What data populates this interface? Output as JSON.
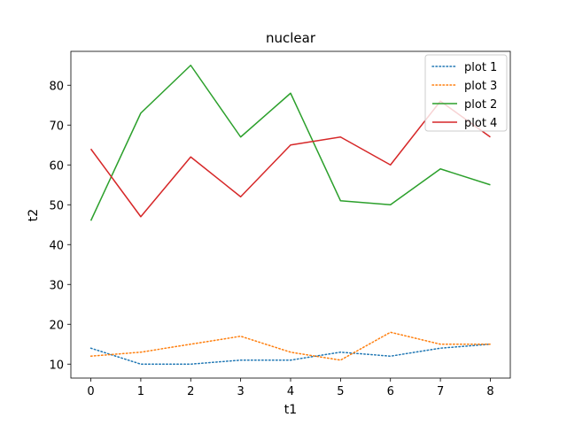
{
  "chart_data": {
    "type": "line",
    "title": "nuclear",
    "xlabel": "t1",
    "ylabel": "t2",
    "x": [
      0,
      1,
      2,
      3,
      4,
      5,
      6,
      7,
      8
    ],
    "xlim": [
      -0.4,
      8.4
    ],
    "ylim": [
      6.5,
      88.5
    ],
    "xticks": [
      0,
      1,
      2,
      3,
      4,
      5,
      6,
      7,
      8
    ],
    "yticks": [
      10,
      20,
      30,
      40,
      50,
      60,
      70,
      80
    ],
    "legend_position": "top-right",
    "series": [
      {
        "name": "plot 1",
        "values": [
          14,
          10,
          10,
          11,
          11,
          13,
          12,
          14,
          15
        ],
        "color": "#1f77b4",
        "style": "dotted"
      },
      {
        "name": "plot 3",
        "values": [
          12,
          13,
          15,
          17,
          13,
          11,
          18,
          15,
          15
        ],
        "color": "#ff7f0e",
        "style": "dotted"
      },
      {
        "name": "plot 2",
        "values": [
          46,
          73,
          85,
          67,
          78,
          51,
          50,
          59,
          55
        ],
        "color": "#2ca02c",
        "style": "solid"
      },
      {
        "name": "plot 4",
        "values": [
          64,
          47,
          62,
          52,
          65,
          67,
          60,
          76,
          67
        ],
        "color": "#d62728",
        "style": "solid"
      }
    ]
  }
}
